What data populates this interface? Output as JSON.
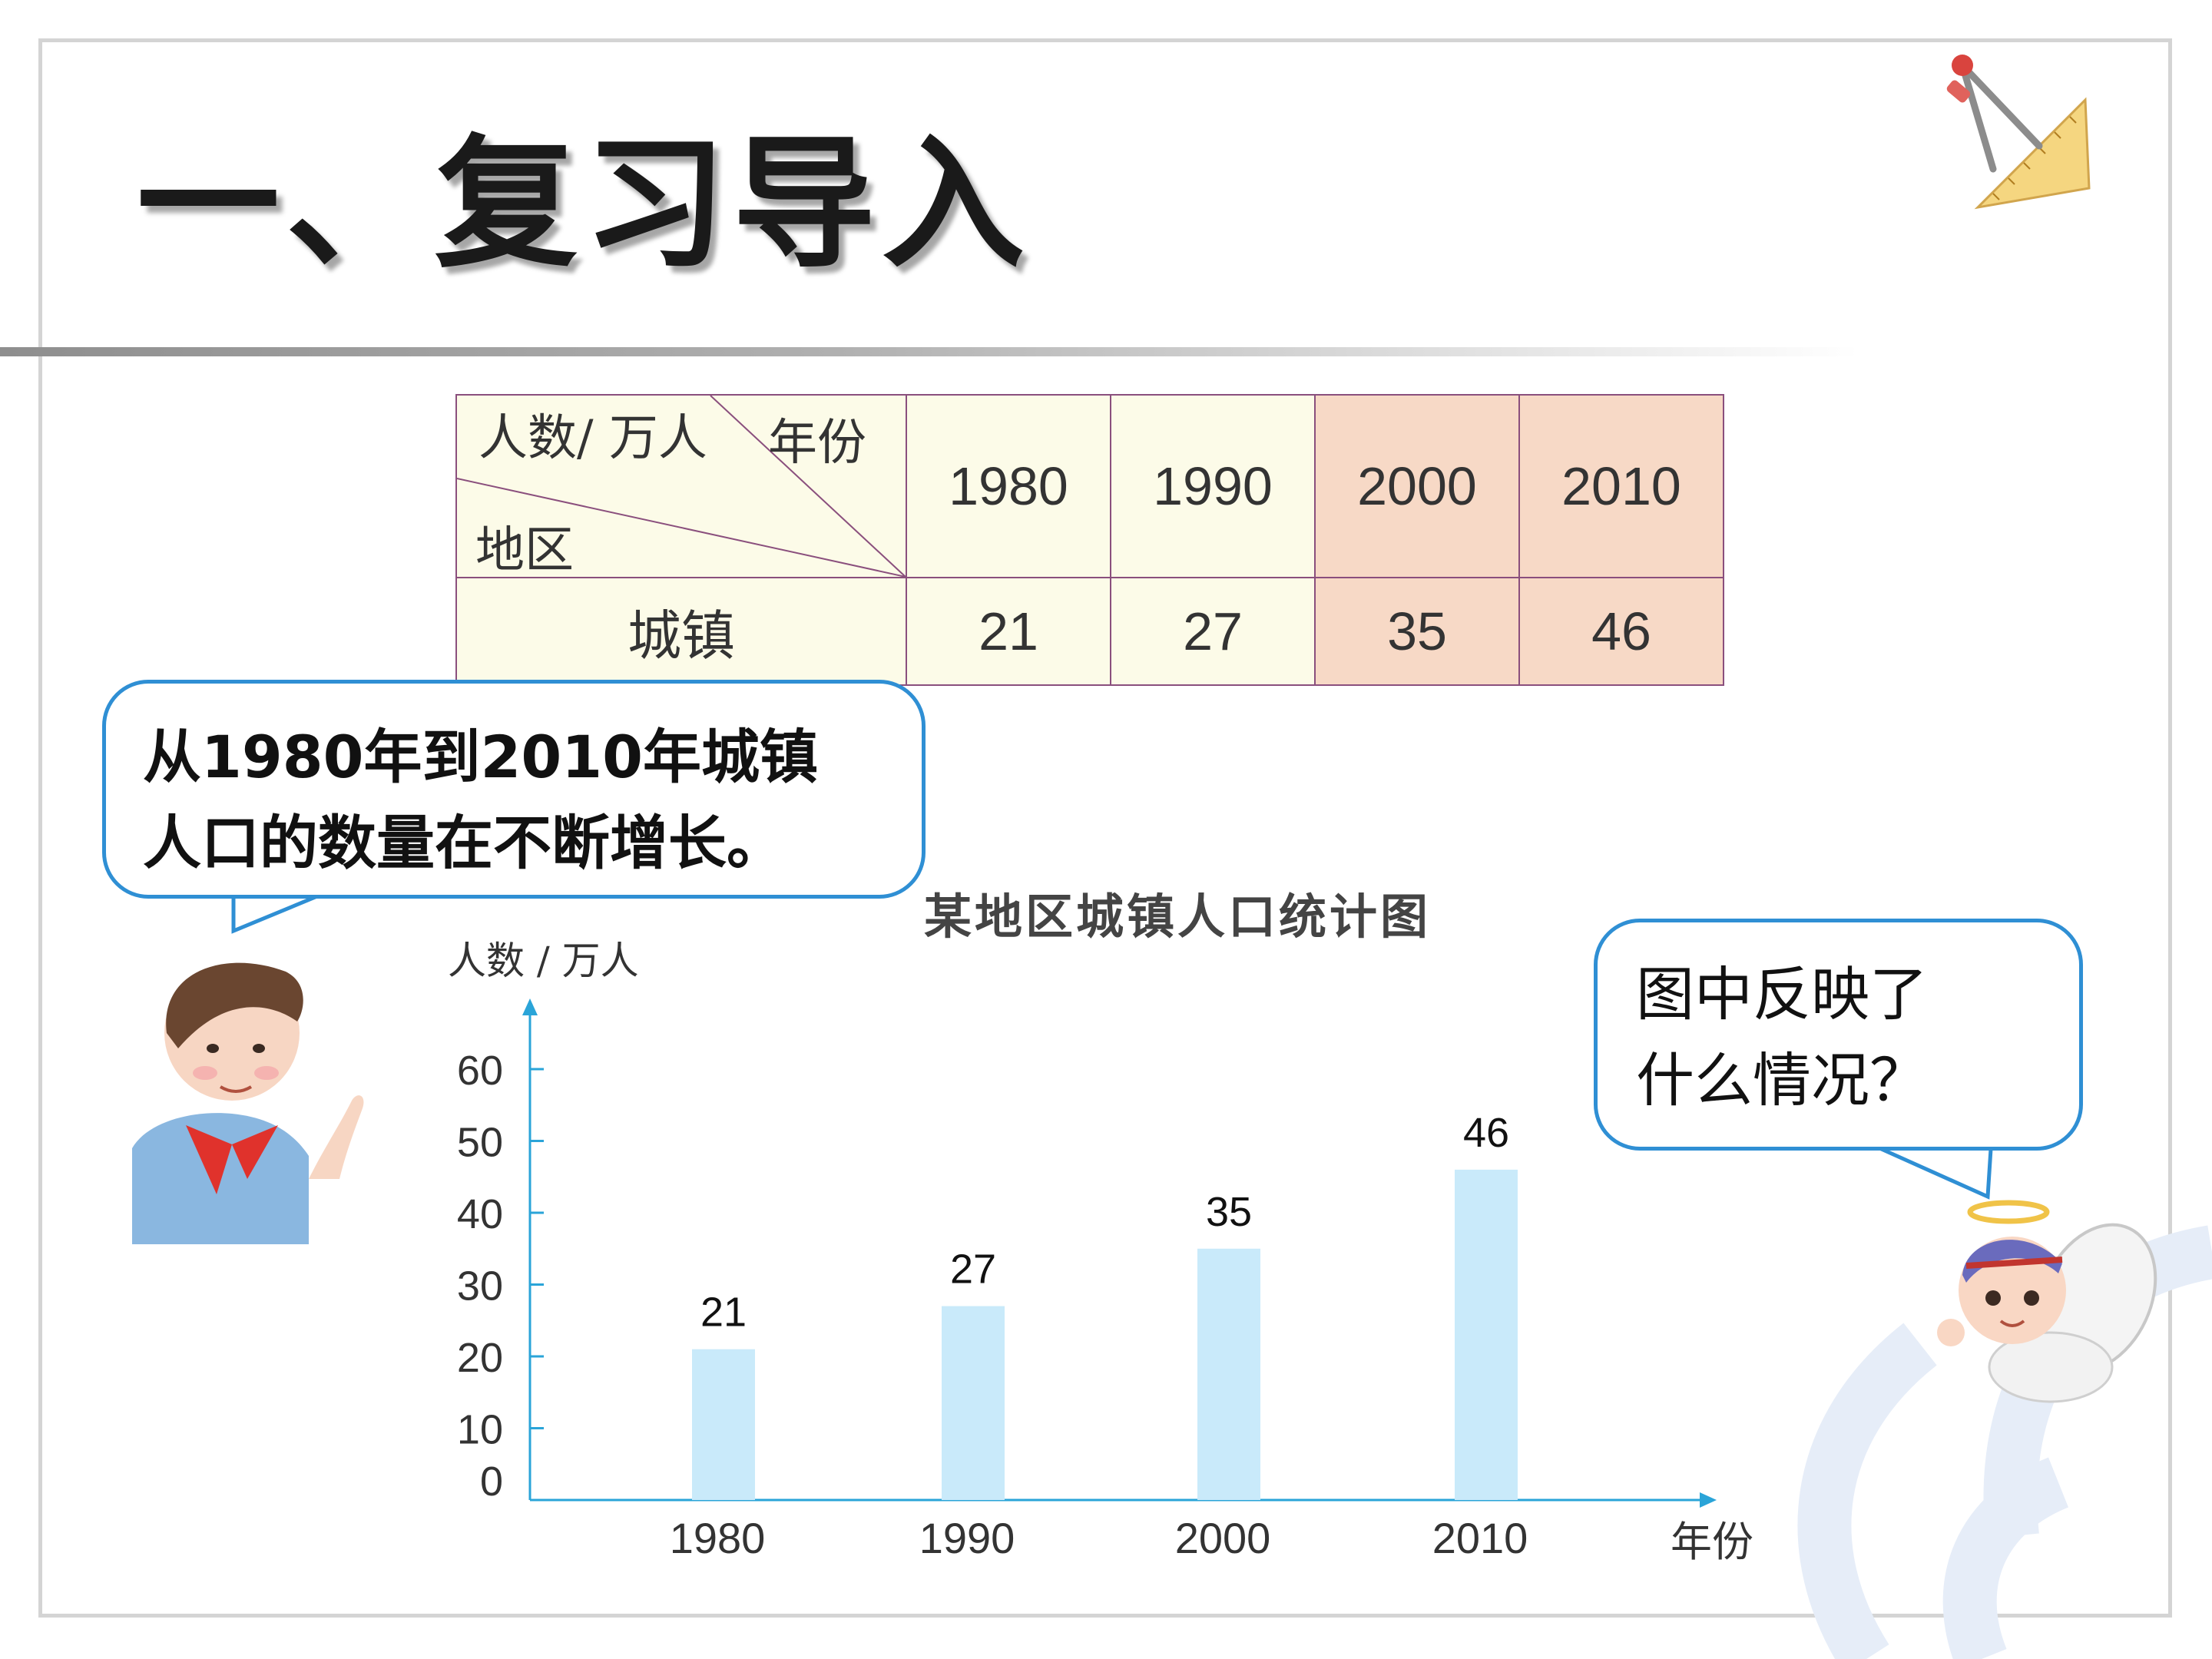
{
  "title": "一、复习导入",
  "table": {
    "corner": {
      "top_right": "年份",
      "middle": "人数/ 万人",
      "bottom_left": "地区"
    },
    "years": [
      "1980",
      "1990",
      "2000",
      "2010"
    ],
    "row_label": "城镇",
    "values": [
      "21",
      "27",
      "35",
      "46"
    ],
    "highlight_color": "#f7d9c6",
    "cell_color": "#fcfbe8",
    "border_color": "#8a4f7d"
  },
  "bubble_left": {
    "line1": "从1980年到2010年城镇",
    "line2": "人口的数量在不断增长。"
  },
  "bubble_right": {
    "line1": "图中反映了",
    "line2": "什么情况？"
  },
  "colors": {
    "bubble_border": "#2f8fd4",
    "axis": "#2aa4d8",
    "bar": "#c9eafa"
  },
  "chart_data": {
    "type": "bar",
    "title": "某地区城镇人口统计图",
    "ylabel": "人数 / 万人",
    "xlabel": "年份",
    "categories": [
      "1980",
      "1990",
      "2000",
      "2010"
    ],
    "values": [
      21,
      27,
      35,
      46
    ],
    "yticks": [
      0,
      10,
      20,
      30,
      40,
      50,
      60
    ],
    "ylim": [
      0,
      60
    ],
    "grid": false,
    "data_labels": true
  }
}
